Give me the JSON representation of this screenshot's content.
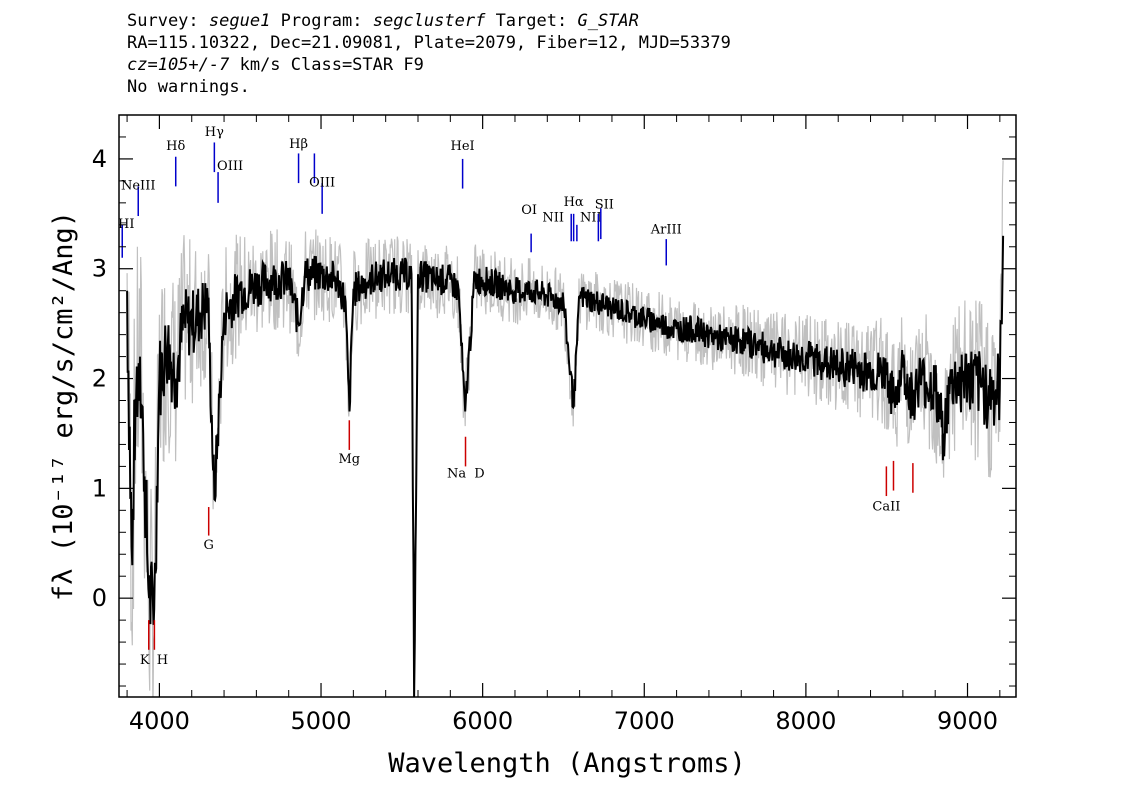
{
  "header": {
    "l1_survey_label": "Survey:",
    "l1_survey": "segue1",
    "l1_program_label": "Program:",
    "l1_program": "segclusterf",
    "l1_target_label": "Target:",
    "l1_target": "G_STAR",
    "l2": "RA=115.10322, Dec=21.09081, Plate=2079, Fiber=12, MJD=53379",
    "l3_cz": "cz=105+/-7",
    "l3_rest": " km/s Class=STAR F9",
    "l4": "No warnings."
  },
  "colors": {
    "flux": "#000000",
    "error": "#c0c0c0",
    "emission": "#0000cc",
    "absorption": "#cc0000"
  },
  "chart_data": {
    "type": "line",
    "xlabel": "Wavelength (Angstroms)",
    "ylabel": "fλ (10⁻¹⁷ erg/s/cm²/Ang)",
    "xlim": [
      3750,
      9300
    ],
    "ylim": [
      -0.9,
      4.4
    ],
    "x_ticks": [
      4000,
      5000,
      6000,
      7000,
      8000,
      9000
    ],
    "y_ticks": [
      0,
      1,
      2,
      3,
      4
    ],
    "series": [
      {
        "role": "flux",
        "x": [
          3800,
          3830,
          3850,
          3880,
          3900,
          3935,
          3968,
          4000,
          4050,
          4101,
          4150,
          4200,
          4250,
          4300,
          4340,
          4400,
          4450,
          4500,
          4600,
          4700,
          4800,
          4861,
          4900,
          5000,
          5100,
          5150,
          5175,
          5200,
          5300,
          5400,
          5500,
          5560,
          5577,
          5600,
          5700,
          5800,
          5850,
          5890,
          5950,
          6000,
          6100,
          6200,
          6300,
          6400,
          6500,
          6563,
          6600,
          6700,
          6800,
          6900,
          7000,
          7100,
          7200,
          7300,
          7400,
          7500,
          7600,
          7700,
          7800,
          7900,
          8000,
          8100,
          8200,
          8300,
          8400,
          8500,
          8542,
          8600,
          8662,
          8700,
          8800,
          8850,
          8900,
          9000,
          9100,
          9150,
          9200,
          9220
        ],
        "y": [
          2.8,
          0.3,
          1.8,
          2.2,
          1.5,
          0.0,
          -0.1,
          2.0,
          2.3,
          2.0,
          2.5,
          2.5,
          2.6,
          2.7,
          0.9,
          2.6,
          2.7,
          2.8,
          2.85,
          2.9,
          2.9,
          2.5,
          2.95,
          2.95,
          2.9,
          2.7,
          1.7,
          2.8,
          2.9,
          2.95,
          2.95,
          2.95,
          -0.9,
          2.95,
          2.9,
          2.9,
          2.8,
          1.7,
          2.9,
          2.9,
          2.85,
          2.8,
          2.8,
          2.75,
          2.7,
          1.75,
          2.75,
          2.7,
          2.65,
          2.6,
          2.55,
          2.5,
          2.45,
          2.45,
          2.4,
          2.35,
          2.35,
          2.3,
          2.25,
          2.2,
          2.2,
          2.15,
          2.1,
          2.1,
          2.05,
          2.05,
          1.8,
          2.1,
          1.8,
          2.0,
          1.9,
          1.5,
          1.95,
          2.0,
          1.9,
          1.85,
          1.9,
          3.3
        ]
      },
      {
        "role": "error",
        "x": [
          3800,
          3900,
          4000,
          4200,
          4400,
          4600,
          4800,
          5000,
          5200,
          5400,
          5600,
          5800,
          6000,
          6200,
          6400,
          6600,
          6800,
          7000,
          7200,
          7400,
          7600,
          7800,
          8000,
          8200,
          8400,
          8600,
          8800,
          9000,
          9200
        ],
        "y": [
          1.2,
          1.1,
          0.9,
          0.7,
          0.55,
          0.45,
          0.4,
          0.38,
          0.36,
          0.34,
          0.33,
          0.32,
          0.3,
          0.28,
          0.27,
          0.26,
          0.26,
          0.26,
          0.27,
          0.28,
          0.3,
          0.33,
          0.36,
          0.4,
          0.45,
          0.5,
          0.6,
          0.7,
          0.8
        ]
      }
    ],
    "emission_lines": [
      {
        "label": "HI",
        "x": 3770,
        "y_top": 3.4,
        "y_bottom": 3.1,
        "label_y": 3.37
      },
      {
        "label": "NeIII",
        "x": 3869,
        "y_top": 3.75,
        "y_bottom": 3.48,
        "label_y": 3.72
      },
      {
        "label": "Hδ",
        "x": 4101,
        "y_top": 4.02,
        "y_bottom": 3.75,
        "label_y": 4.08
      },
      {
        "label": "Hγ",
        "x": 4340,
        "y_top": 4.15,
        "y_bottom": 3.88,
        "label_y": 4.21
      },
      {
        "label": "OIII",
        "x": 4363,
        "y_top": 3.88,
        "y_bottom": 3.6,
        "label_y": 3.9
      },
      {
        "label": "Hβ",
        "x": 4861,
        "y_top": 4.05,
        "y_bottom": 3.78,
        "label_y": 4.1
      },
      {
        "label": "OIII",
        "x": 4959,
        "y_top": 4.05,
        "y_bottom": 3.78,
        "label_y": 0
      },
      {
        "label": "OIII",
        "x": 5007,
        "y_top": 3.78,
        "y_bottom": 3.5,
        "label_y": 3.75
      },
      {
        "label": "HeI",
        "x": 5876,
        "y_top": 4.0,
        "y_bottom": 3.73,
        "label_y": 4.08
      },
      {
        "label": "OI",
        "x": 6300,
        "y_top": 3.32,
        "y_bottom": 3.15,
        "label_y": 3.5
      },
      {
        "label": "NII",
        "x": 6548,
        "y_top": 3.5,
        "y_bottom": 3.25,
        "label_y": 3.43
      },
      {
        "label": "Hα",
        "x": 6563,
        "y_top": 3.5,
        "y_bottom": 3.25,
        "label_y": 3.57
      },
      {
        "label": "NII",
        "x": 6583,
        "y_top": 3.4,
        "y_bottom": 3.25,
        "label_y": 3.43
      },
      {
        "label": "SII",
        "x": 6716,
        "y_top": 3.5,
        "y_bottom": 3.25,
        "label_y": 3.55
      },
      {
        "label": "SII",
        "x": 6731,
        "y_top": 3.55,
        "y_bottom": 3.27,
        "label_y": 0
      },
      {
        "label": "ArIII",
        "x": 7136,
        "y_top": 3.27,
        "y_bottom": 3.03,
        "label_y": 3.32
      }
    ],
    "absorption_lines": [
      {
        "label": "K",
        "x": 3934,
        "y_top": -0.2,
        "y_bottom": -0.47,
        "label_y": -0.6
      },
      {
        "label": "H",
        "x": 3969,
        "y_top": -0.2,
        "y_bottom": -0.47,
        "label_y": -0.6
      },
      {
        "label": "G",
        "x": 4305,
        "y_top": 0.83,
        "y_bottom": 0.57,
        "label_y": 0.45
      },
      {
        "label": "Mg",
        "x": 5175,
        "y_top": 1.62,
        "y_bottom": 1.35,
        "label_y": 1.23
      },
      {
        "label": "Na",
        "x": 5894,
        "y_top": 1.47,
        "y_bottom": 1.2,
        "label_y": 1.1
      },
      {
        "label": "D",
        "x": 5894,
        "y_top": 0,
        "y_bottom": 0,
        "label_y": 1.1
      },
      {
        "label": "CaII",
        "x": 8498,
        "y_top": 1.2,
        "y_bottom": 0.93,
        "label_y": 0.8
      },
      {
        "label": "CaII",
        "x": 8542,
        "y_top": 1.25,
        "y_bottom": 0.98,
        "label_y": 0
      },
      {
        "label": "CaII",
        "x": 8662,
        "y_top": 1.23,
        "y_bottom": 0.96,
        "label_y": 0
      }
    ]
  }
}
